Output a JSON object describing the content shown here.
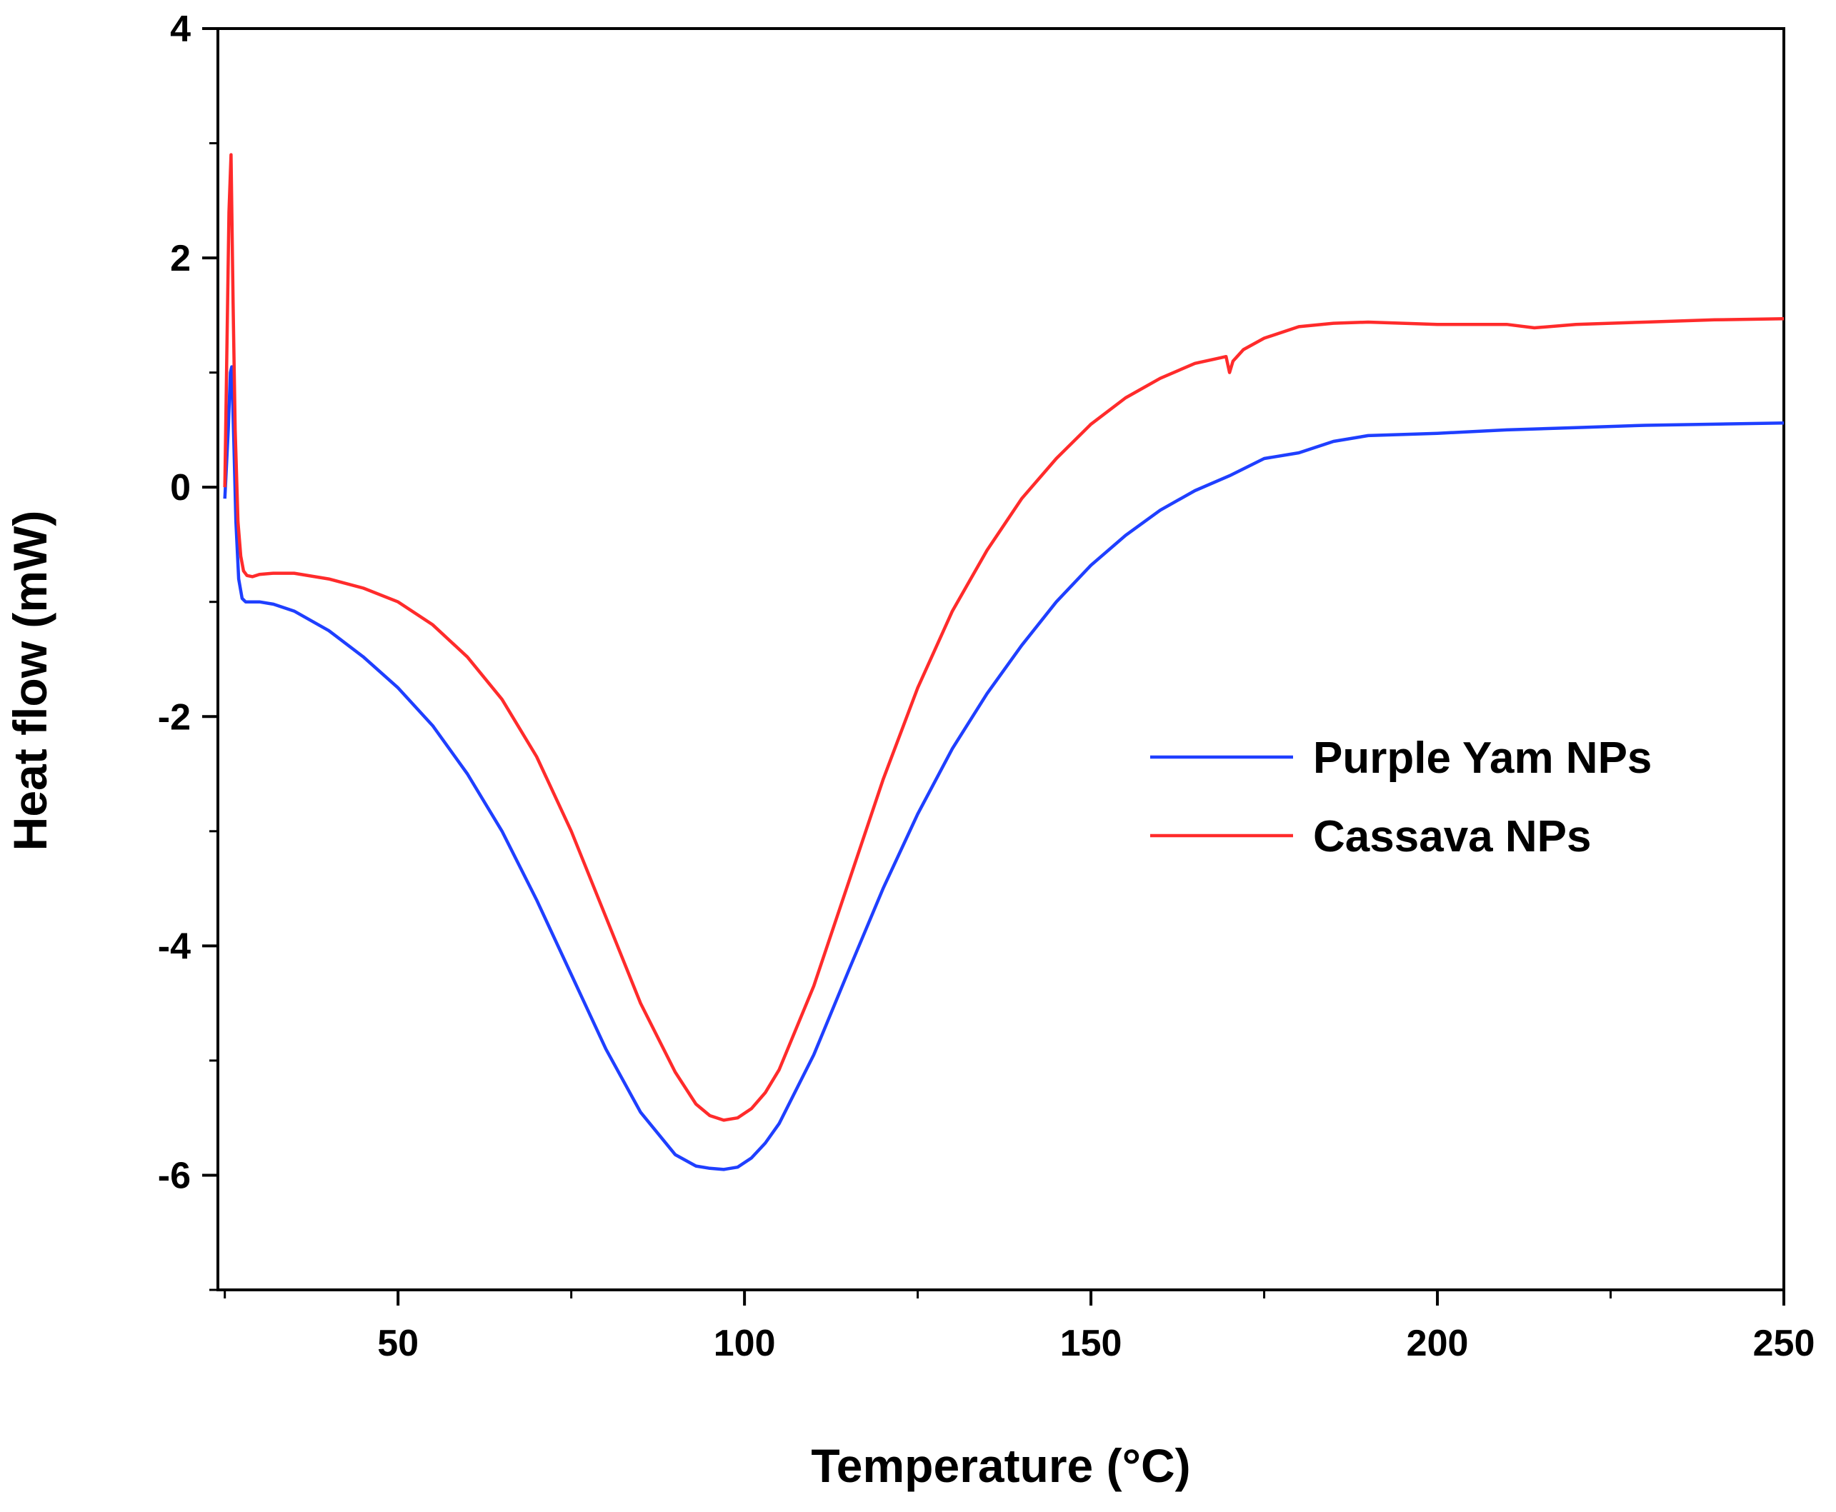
{
  "chart_data": {
    "type": "line",
    "title": "",
    "xlabel": "Temperature (°C)",
    "ylabel": "Heat flow (mW)",
    "xlim": [
      24,
      250
    ],
    "ylim": [
      -7,
      4
    ],
    "x_ticks": [
      50,
      100,
      150,
      200,
      250
    ],
    "x_tick_labels": [
      "50",
      "100",
      "150",
      "200",
      "250"
    ],
    "x_minor_ticks": [
      25,
      75,
      125,
      175,
      225
    ],
    "y_ticks": [
      -6,
      -4,
      -2,
      0,
      2,
      4
    ],
    "y_tick_labels": [
      "-6",
      "-4",
      "-2",
      "0",
      "2",
      "4"
    ],
    "y_minor_ticks": [
      -7,
      -5,
      -3,
      -1,
      1,
      3
    ],
    "grid": false,
    "legend_position": "right",
    "series": [
      {
        "name": "Purple Yam NPs",
        "color": "#1f3fff",
        "x": [
          25.0,
          25.5,
          25.8,
          26.0,
          26.3,
          26.6,
          27.0,
          27.5,
          28.0,
          29.0,
          30,
          32,
          35,
          40,
          45,
          50,
          55,
          60,
          65,
          70,
          75,
          80,
          85,
          90,
          93,
          95,
          97,
          99,
          101,
          103,
          105,
          110,
          115,
          120,
          125,
          130,
          135,
          140,
          145,
          150,
          155,
          160,
          165,
          170,
          175,
          180,
          185,
          190,
          200,
          210,
          220,
          230,
          240,
          250
        ],
        "y": [
          -0.1,
          0.5,
          1.0,
          1.05,
          0.4,
          -0.3,
          -0.8,
          -0.97,
          -1.0,
          -1.0,
          -1.0,
          -1.02,
          -1.08,
          -1.25,
          -1.48,
          -1.75,
          -2.08,
          -2.5,
          -3.0,
          -3.6,
          -4.25,
          -4.9,
          -5.45,
          -5.82,
          -5.92,
          -5.94,
          -5.95,
          -5.93,
          -5.85,
          -5.72,
          -5.55,
          -4.95,
          -4.22,
          -3.5,
          -2.85,
          -2.28,
          -1.8,
          -1.38,
          -1.0,
          -0.68,
          -0.42,
          -0.2,
          -0.03,
          0.1,
          0.25,
          0.3,
          0.4,
          0.45,
          0.47,
          0.5,
          0.52,
          0.54,
          0.55,
          0.56
        ]
      },
      {
        "name": "Cassava NPs",
        "color": "#ff2b2b",
        "x": [
          25.0,
          25.3,
          25.6,
          25.9,
          26.2,
          26.5,
          26.9,
          27.3,
          27.7,
          28.2,
          29.0,
          30,
          32,
          35,
          40,
          45,
          50,
          55,
          60,
          65,
          70,
          75,
          80,
          85,
          90,
          93,
          95,
          97,
          99,
          101,
          103,
          105,
          110,
          115,
          120,
          125,
          130,
          135,
          140,
          145,
          150,
          155,
          160,
          165,
          168,
          169.5,
          170,
          170.5,
          172,
          175,
          180,
          185,
          190,
          200,
          210,
          214,
          220,
          230,
          240,
          250
        ],
        "y": [
          0.0,
          1.2,
          2.4,
          2.9,
          1.6,
          0.5,
          -0.3,
          -0.6,
          -0.73,
          -0.77,
          -0.78,
          -0.76,
          -0.75,
          -0.75,
          -0.8,
          -0.88,
          -1.0,
          -1.2,
          -1.48,
          -1.85,
          -2.35,
          -3.0,
          -3.75,
          -4.5,
          -5.1,
          -5.38,
          -5.48,
          -5.52,
          -5.5,
          -5.42,
          -5.28,
          -5.08,
          -4.35,
          -3.45,
          -2.55,
          -1.75,
          -1.08,
          -0.55,
          -0.1,
          0.25,
          0.55,
          0.78,
          0.95,
          1.08,
          1.12,
          1.14,
          1.0,
          1.1,
          1.2,
          1.3,
          1.4,
          1.43,
          1.44,
          1.42,
          1.42,
          1.39,
          1.42,
          1.44,
          1.46,
          1.47
        ]
      }
    ]
  }
}
